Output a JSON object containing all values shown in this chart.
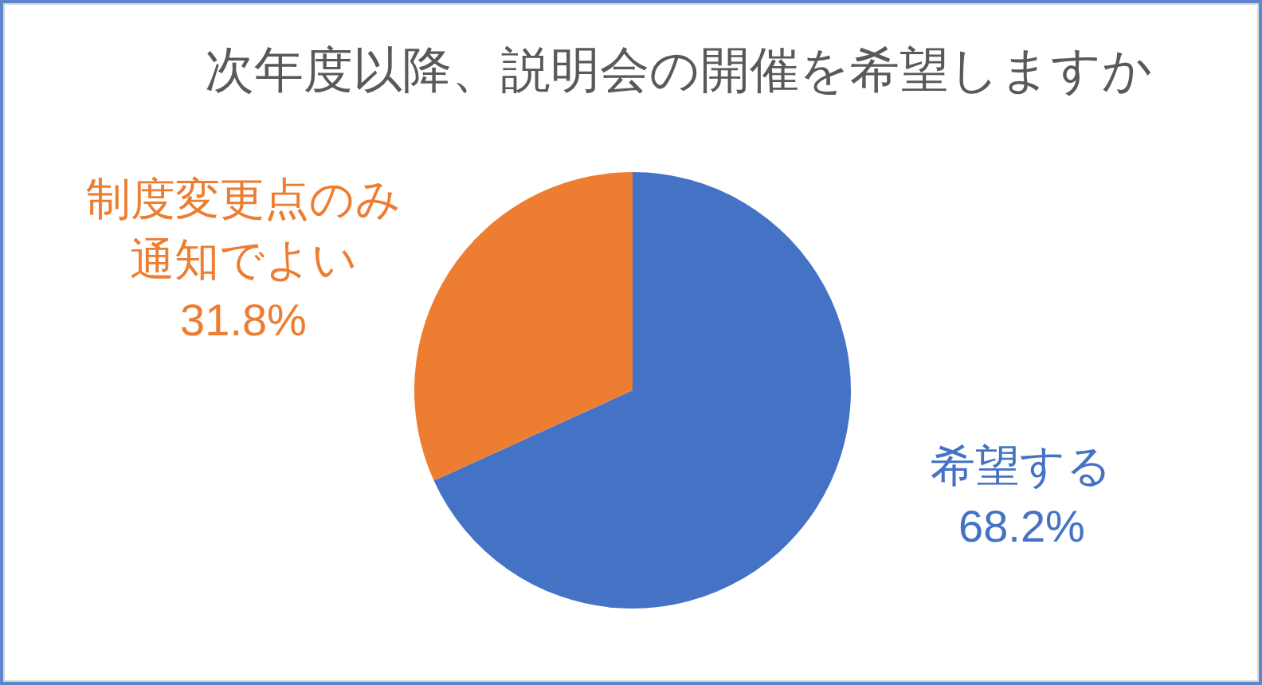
{
  "chart_data": {
    "type": "pie",
    "title": "次年度以降、説明会の開催を希望しますか",
    "categories": [
      "希望する",
      "制度変更点のみ通知でよい"
    ],
    "values": [
      68.2,
      31.8
    ],
    "colors": [
      "#4472c4",
      "#ed7d31"
    ],
    "value_labels": [
      "68.2%",
      "31.8%"
    ],
    "legend": false
  }
}
